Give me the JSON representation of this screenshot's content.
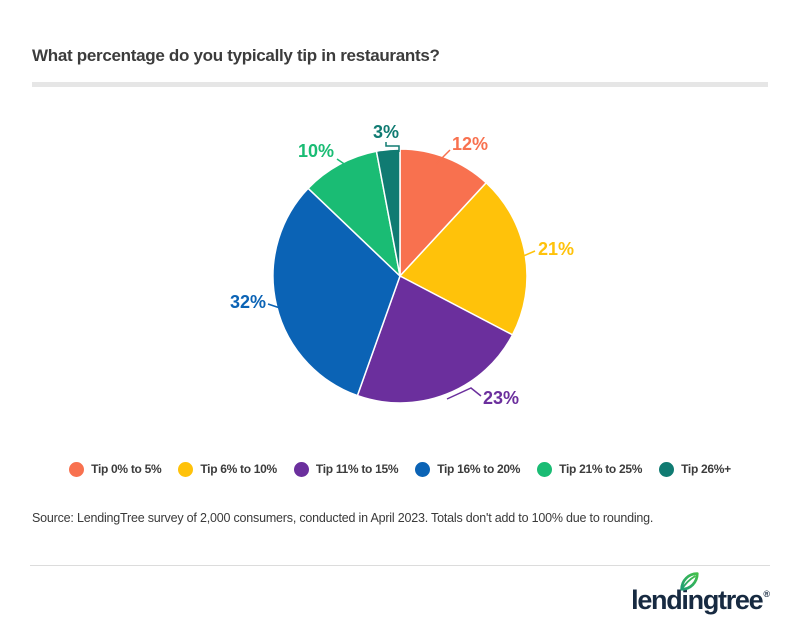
{
  "title": "What percentage do you typically tip in restaurants?",
  "source_note": "Source: LendingTree survey of 2,000 consumers, conducted in April 2023. Totals don't add to 100% due to rounding.",
  "brand": {
    "logo_text": "lendingtree",
    "registered_mark": "®",
    "navy": "#172A41",
    "leaf_green_dark": "#1C9E74",
    "leaf_green_light": "#44C04C"
  },
  "chart_data": {
    "type": "pie",
    "title": "What percentage do you typically tip in restaurants?",
    "unit": "%",
    "start_angle": "top",
    "direction": "clockwise",
    "legend_position": "bottom",
    "categories": [
      "Tip 0% to 5%",
      "Tip 6% to 10%",
      "Tip 11% to 15%",
      "Tip 16% to 20%",
      "Tip 21% to 25%",
      "Tip 26%+"
    ],
    "values": [
      12,
      21,
      23,
      32,
      10,
      3
    ],
    "labels": [
      "12%",
      "21%",
      "23%",
      "32%",
      "10%",
      "3%"
    ],
    "colors": [
      "#F8714F",
      "#FFC20A",
      "#6B2F9D",
      "#0B63B5",
      "#1ABC74",
      "#107B72"
    ],
    "note": "Totals don't add to 100% due to rounding."
  }
}
